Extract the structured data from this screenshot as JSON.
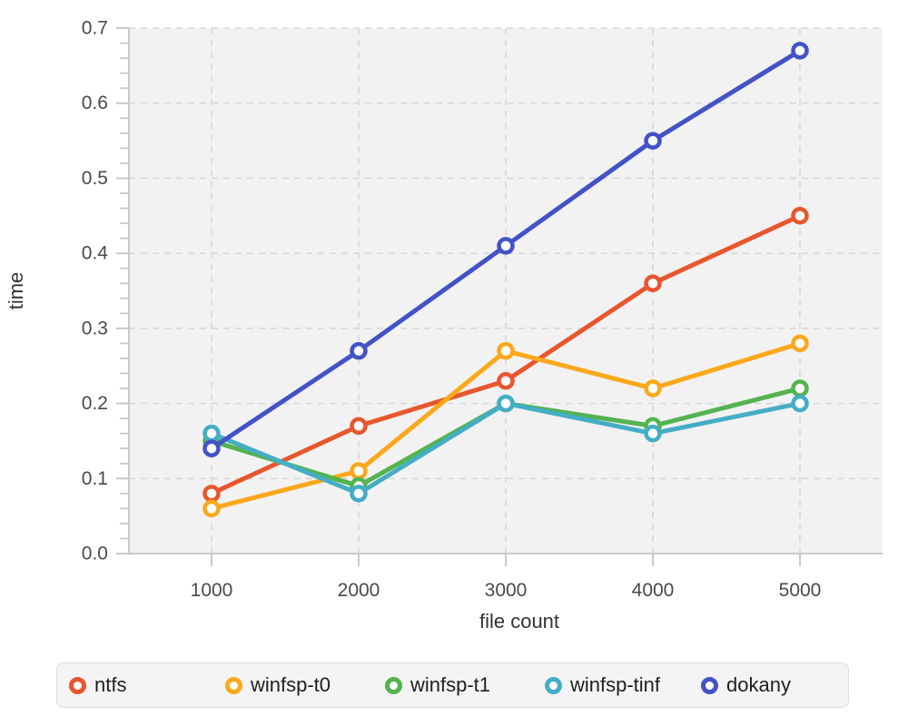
{
  "chart_data": {
    "type": "line",
    "title": "",
    "xlabel": "file count",
    "ylabel": "time",
    "x": [
      1000,
      2000,
      3000,
      4000,
      5000
    ],
    "x_tick_labels": [
      "1000",
      "2000",
      "3000",
      "4000",
      "5000"
    ],
    "y_ticks": [
      0.0,
      0.1,
      0.2,
      0.3,
      0.4,
      0.5,
      0.6,
      0.7
    ],
    "ylim": [
      0,
      0.7
    ],
    "y_minor_tick_step": 0.02,
    "grid": "dashed",
    "legend_position": "bottom",
    "series": [
      {
        "name": "ntfs",
        "color": "#E8562E",
        "values": [
          0.08,
          0.17,
          0.23,
          0.36,
          0.45
        ]
      },
      {
        "name": "winfsp-t0",
        "color": "#FBA81C",
        "values": [
          0.06,
          0.11,
          0.27,
          0.22,
          0.28
        ]
      },
      {
        "name": "winfsp-t1",
        "color": "#53B350",
        "values": [
          0.15,
          0.09,
          0.2,
          0.17,
          0.22
        ]
      },
      {
        "name": "winfsp-tinf",
        "color": "#45ADC6",
        "values": [
          0.16,
          0.08,
          0.2,
          0.16,
          0.2
        ]
      },
      {
        "name": "dokany",
        "color": "#4353C6",
        "values": [
          0.14,
          0.27,
          0.41,
          0.55,
          0.67
        ]
      }
    ],
    "styles": {
      "plot_bg": "#F2F2F2",
      "grid_color": "#D7D7D7",
      "axis_color": "#C9C9C9",
      "tick_label_color": "#4A4A4A",
      "axis_title_color": "#333333",
      "marker_fill": "#FFFFFF"
    }
  }
}
